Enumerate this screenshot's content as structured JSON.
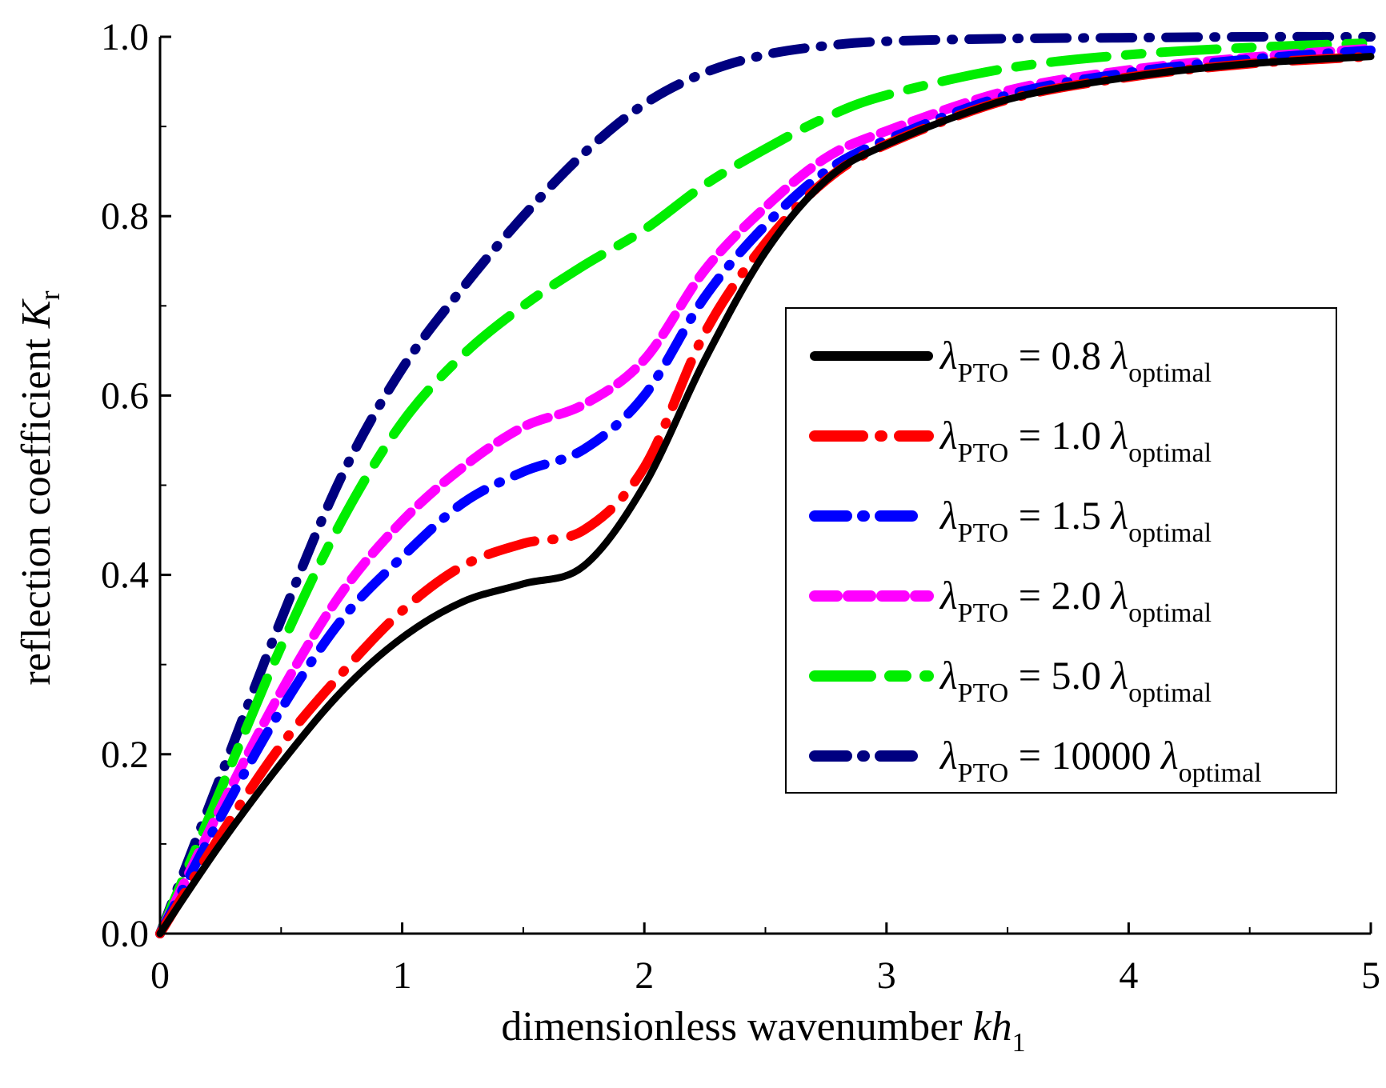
{
  "chart_data": {
    "type": "line",
    "title": "",
    "xlabel": "dimensionless wavenumber kh1",
    "xlabel_parts": {
      "text": "dimensionless wavenumber ",
      "var": "kh",
      "sub": "1"
    },
    "ylabel": "reflection coefficient Kr",
    "ylabel_parts": {
      "text": "reflection coefficient ",
      "var": "K",
      "sub": "r"
    },
    "xlim": [
      0,
      5
    ],
    "ylim": [
      0.0,
      1.0
    ],
    "xticks": [
      "0",
      "1",
      "2",
      "3",
      "4",
      "5"
    ],
    "yticks": [
      "0.0",
      "0.2",
      "0.4",
      "0.6",
      "0.8",
      "1.0"
    ],
    "grid": false,
    "legend_position": "center-right",
    "x": [
      0,
      0.25,
      0.5,
      0.75,
      1.0,
      1.25,
      1.5,
      1.75,
      2.0,
      2.25,
      2.5,
      2.75,
      3.0,
      3.5,
      4.0,
      4.5,
      5.0
    ],
    "series": [
      {
        "name": "λPTO = 0.8 λoptimal",
        "label": {
          "lam": "λ",
          "sub": "PTO",
          "mid": " = 0.8 ",
          "lam2": "λ",
          "sub2": "optimal"
        },
        "color": "#000000",
        "dash": "solid",
        "values": [
          0.0,
          0.1,
          0.19,
          0.27,
          0.33,
          0.37,
          0.39,
          0.41,
          0.5,
          0.64,
          0.76,
          0.84,
          0.88,
          0.93,
          0.955,
          0.97,
          0.978
        ]
      },
      {
        "name": "λPTO = 1.0 λoptimal",
        "label": {
          "lam": "λ",
          "sub": "PTO",
          "mid": " = 1.0 ",
          "lam2": "λ",
          "sub2": "optimal"
        },
        "color": "#ff0000",
        "dash": "long-dash-dot",
        "values": [
          0.0,
          0.11,
          0.21,
          0.29,
          0.36,
          0.41,
          0.435,
          0.45,
          0.52,
          0.67,
          0.77,
          0.84,
          0.88,
          0.93,
          0.955,
          0.97,
          0.978
        ]
      },
      {
        "name": "λPTO = 1.5 λoptimal",
        "label": {
          "lam": "λ",
          "sub": "PTO",
          "mid": " = 1.5 ",
          "lam2": "λ",
          "sub2": "optimal"
        },
        "color": "#0000ff",
        "dash": "dash-dot",
        "values": [
          0.0,
          0.13,
          0.25,
          0.35,
          0.42,
          0.48,
          0.515,
          0.54,
          0.6,
          0.71,
          0.79,
          0.85,
          0.885,
          0.935,
          0.96,
          0.975,
          0.985
        ]
      },
      {
        "name": "λPTO = 2.0 λoptimal",
        "label": {
          "lam": "λ",
          "sub": "PTO",
          "mid": " = 2.0 ",
          "lam2": "λ",
          "sub2": "optimal"
        },
        "color": "#ff00ff",
        "dash": "short-dash",
        "values": [
          0.0,
          0.14,
          0.27,
          0.38,
          0.46,
          0.52,
          0.565,
          0.59,
          0.64,
          0.74,
          0.81,
          0.865,
          0.895,
          0.94,
          0.963,
          0.977,
          0.987
        ]
      },
      {
        "name": "λPTO = 5.0 λoptimal",
        "label": {
          "lam": "λ",
          "sub": "PTO",
          "mid": " = 5.0 ",
          "lam2": "λ",
          "sub2": "optimal"
        },
        "color": "#00ee00",
        "dash": "long-dash-short-dash",
        "values": [
          0.0,
          0.16,
          0.32,
          0.46,
          0.57,
          0.645,
          0.7,
          0.745,
          0.785,
          0.835,
          0.875,
          0.91,
          0.935,
          0.965,
          0.98,
          0.988,
          0.993
        ]
      },
      {
        "name": "λPTO = 10000 λoptimal",
        "label": {
          "lam": "λ",
          "sub": "PTO",
          "mid": " = 10000 ",
          "lam2": "λ",
          "sub2": "optimal"
        },
        "color": "#000080",
        "dash": "dash-dot",
        "values": [
          0.0,
          0.175,
          0.35,
          0.51,
          0.63,
          0.72,
          0.8,
          0.87,
          0.925,
          0.96,
          0.98,
          0.99,
          0.995,
          0.998,
          0.999,
          1.0,
          1.0
        ]
      }
    ]
  }
}
